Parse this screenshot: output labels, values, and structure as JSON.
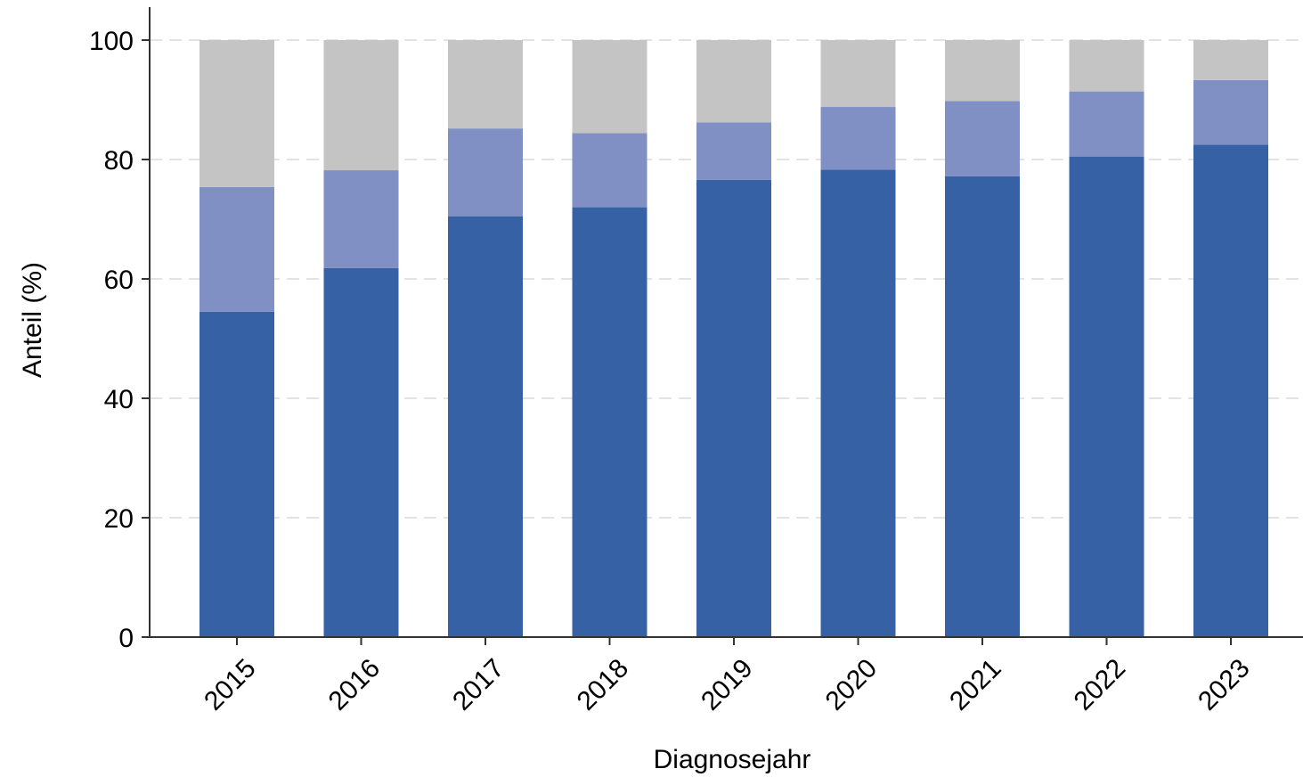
{
  "chart_data": {
    "type": "bar",
    "stacked": true,
    "title": "",
    "xlabel": "Diagnosejahr",
    "ylabel": "Anteil (%)",
    "ylim": [
      0,
      100
    ],
    "yticks": [
      0,
      20,
      40,
      60,
      80,
      100
    ],
    "grid": "horizontal dashed",
    "categories": [
      "2015",
      "2016",
      "2017",
      "2018",
      "2019",
      "2020",
      "2021",
      "2022",
      "2023"
    ],
    "series": [
      {
        "values": [
          54.5,
          61.8,
          70.5,
          72.0,
          76.6,
          78.3,
          77.2,
          80.5,
          82.5
        ],
        "color": "#3761a5"
      },
      {
        "values": [
          20.9,
          16.4,
          14.7,
          12.4,
          9.6,
          10.5,
          12.6,
          10.9,
          10.8
        ],
        "color": "#808fc4"
      },
      {
        "values": [
          24.6,
          21.8,
          14.8,
          15.6,
          13.8,
          11.2,
          10.2,
          8.6,
          6.7
        ],
        "color": "#c4c4c4"
      }
    ]
  }
}
